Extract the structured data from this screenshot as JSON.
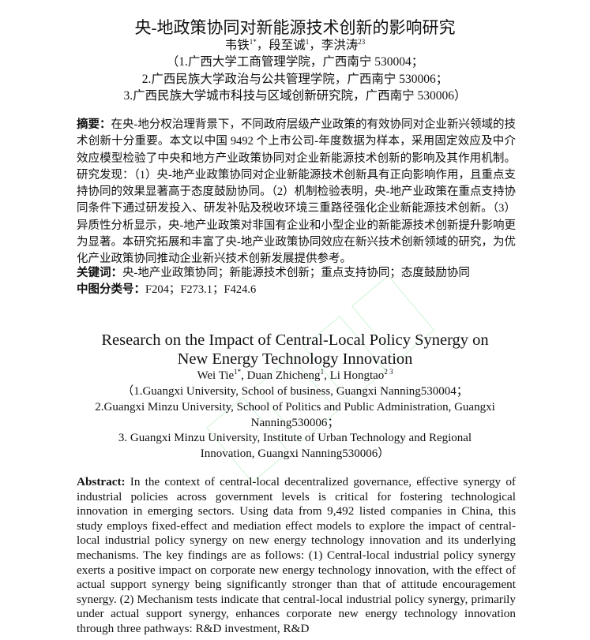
{
  "cn": {
    "title": "央-地政策协同对新能源技术创新的影响研究",
    "authors": [
      {
        "name": "韦铁",
        "sup": "1*",
        "sep": "，"
      },
      {
        "name": "段至诚",
        "sup": "1",
        "sep": "，"
      },
      {
        "name": "李洪涛",
        "sup": "23",
        "sep": ""
      }
    ],
    "affiliations": [
      "（1.广西大学工商管理学院，广西南宁 530004；",
      "2.广西民族大学政治与公共管理学院，广西南宁 530006；",
      "3.广西民族大学城市科技与区域创新研究院，广西南宁 530006）"
    ],
    "abstract_label": "摘要：",
    "abstract": "在央-地分权治理背景下，不同政府层级产业政策的有效协同对企业新兴领域的技术创新十分重要。本文以中国 9492 个上市公司-年度数据为样本，采用固定效应及中介效应模型检验了中央和地方产业政策协同对企业新能源技术创新的影响及其作用机制。研究发现：（1）央-地产业政策协同对企业新能源技术创新具有正向影响作用，且重点支持协同的效果显著高于态度鼓励协同。（2）机制检验表明，央-地产业政策在重点支持协同条件下通过研发投入、研发补贴及税收环境三重路径强化企业新能源技术创新。（3）异质性分析显示，央-地产业政策对非国有企业和小型企业的新能源技术创新提升影响更为显著。本研究拓展和丰富了央-地产业政策协同效应在新兴技术创新领域的研究，为优化产业政策协同推动企业新兴技术创新发展提供参考。",
    "keywords_label": "关键词：",
    "keywords": "央-地产业政策协同；新能源技术创新；重点支持协同；态度鼓励协同",
    "clc_label": "中图分类号：",
    "clc": "F204；F273.1；F424.6"
  },
  "en": {
    "title_line1": "Research on the Impact of Central-Local Policy Synergy on",
    "title_line2": "New Energy Technology Innovation",
    "authors": [
      {
        "name": "Wei Tie",
        "sup": "1*",
        "sep": ", "
      },
      {
        "name": "Duan Zhicheng",
        "sup": "1",
        "sep": ", "
      },
      {
        "name": "Li Hongtao",
        "sup": "2 3",
        "sep": ""
      }
    ],
    "affiliations": [
      "（1.Guangxi University, School of business, Guangxi Nanning530004；",
      "2.Guangxi Minzu University, School of Politics and Public Administration, Guangxi",
      "Nanning530006；",
      "3. Guangxi Minzu University, Institute of Urban Technology and Regional",
      "Innovation, Guangxi Nanning530006）"
    ],
    "abstract_label": "Abstract:",
    "abstract": " In the context of central-local decentralized governance, effective synergy of industrial policies across government levels is critical for fostering technological innovation in emerging sectors. Using data from 9,492 listed companies in China, this study employs fixed-effect and mediation effect models to explore the impact of central-local industrial policy synergy on new energy technology innovation and its underlying mechanisms. The key findings are as follows: (1) Central-local industrial policy synergy exerts a positive impact on corporate new energy technology innovation, with the effect of actual support synergy being significantly stronger than that of attitude encouragement synergy. (2) Mechanism tests indicate that central-local industrial policy synergy, primarily under actual support synergy, enhances corporate new energy technology innovation through three pathways: R&D investment, R&D"
  },
  "colors": {
    "watermark": "#8fe39a",
    "text": "#111111"
  }
}
